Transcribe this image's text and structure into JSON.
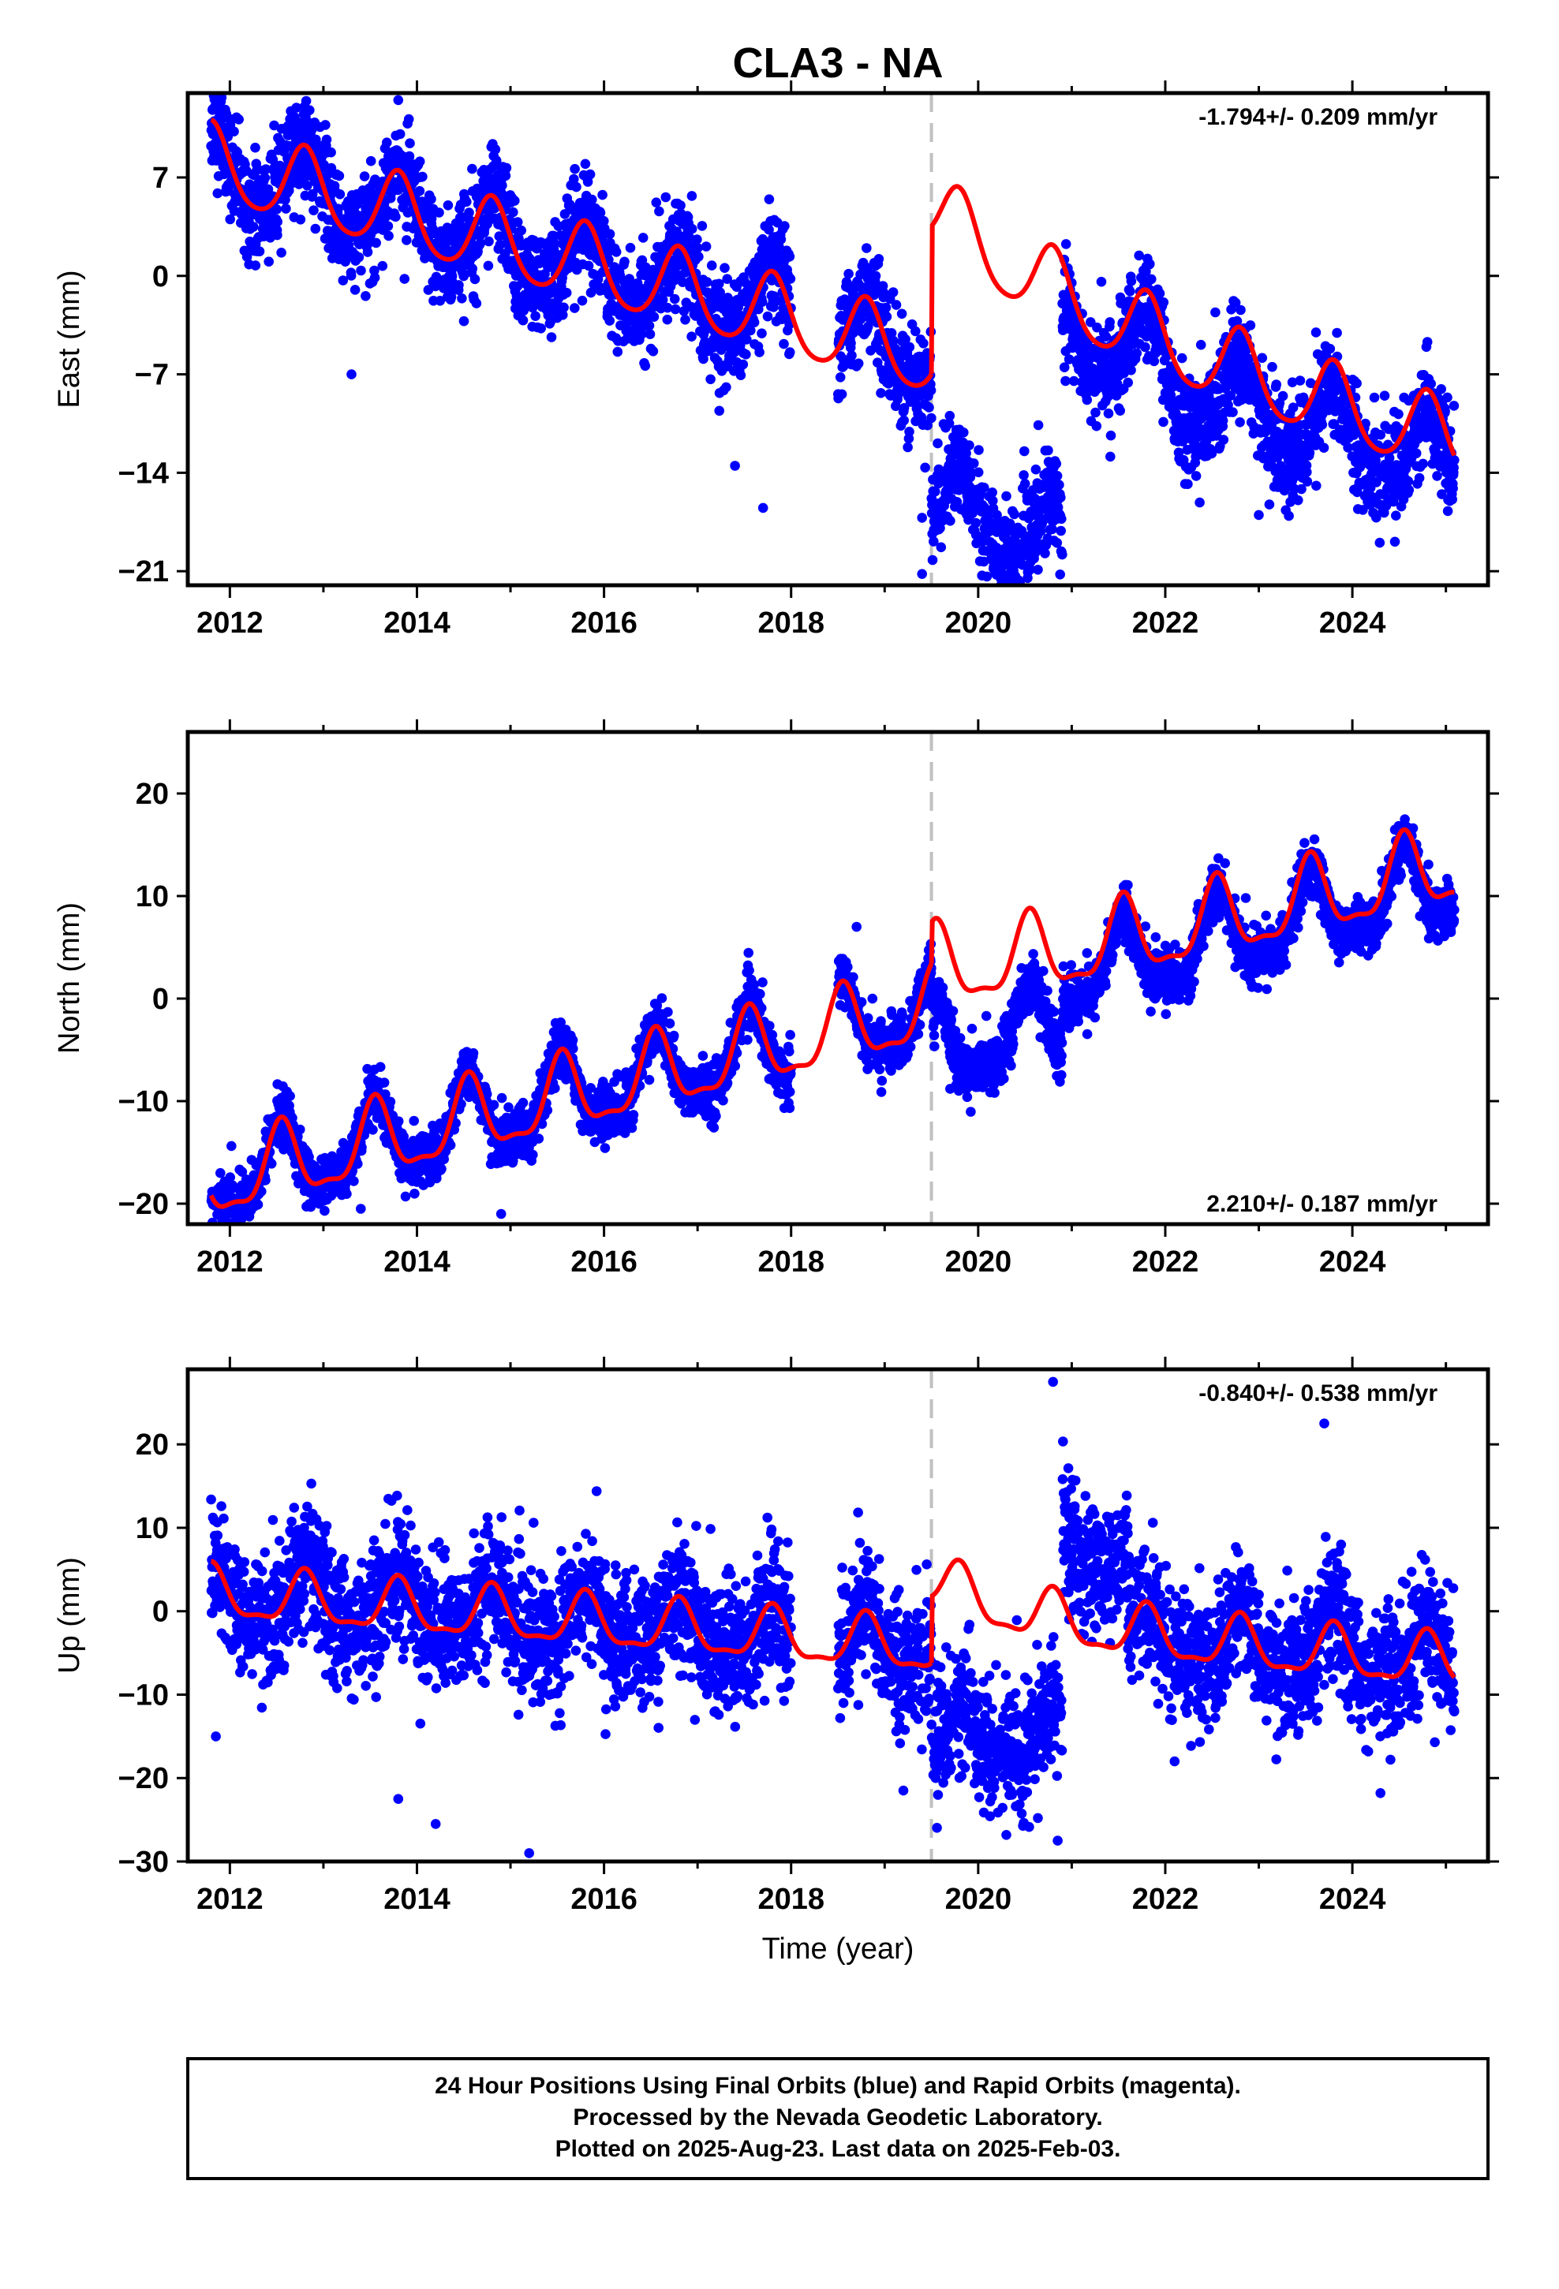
{
  "title": "CLA3 - NA",
  "xlabel": "Time (year)",
  "footer": {
    "line1": "24 Hour Positions Using Final Orbits (blue) and Rapid Orbits (magenta).",
    "line2": "Processed by the Nevada Geodetic Laboratory.",
    "line3": "Plotted on 2025-Aug-23. Last data on 2025-Feb-03."
  },
  "colors": {
    "points": "#0000ff",
    "model": "#ff0000",
    "step_line": "#c0c0c0",
    "frame": "#000000"
  },
  "chart_data": [
    {
      "type": "scatter",
      "ylabel": "East (mm)",
      "rate_text": "-1.794+/- 0.209 mm/yr",
      "rate_position": "top-right",
      "xlim": [
        2011.55,
        2025.45
      ],
      "ylim": [
        -22,
        13
      ],
      "xticks": [
        2012,
        2014,
        2016,
        2018,
        2020,
        2022,
        2024
      ],
      "yticks": [
        7,
        0,
        -7,
        -14,
        -21
      ],
      "step_epoch": 2019.5,
      "data_start": 2011.8,
      "data_end": 2025.09,
      "gap": [
        2018.0,
        2018.5
      ],
      "model": {
        "rate": -1.794,
        "base_value": 8.0,
        "annual_amplitude": 2.7,
        "annual_peak": 0.8,
        "semiannual_amplitude": 0.4,
        "step_offset": 10.5,
        "step_decay_years": 2.0
      },
      "observation_offset": [
        {
          "from": 2019.5,
          "to": 2020.9,
          "offset": -10.5
        },
        {
          "from": 2020.9,
          "to": 2022.0,
          "offset": 4.5
        },
        {
          "from": 2022.0,
          "to": 2025.1,
          "offset": 2.5
        }
      ],
      "scatter_sigma": 1.8,
      "outliers": [
        {
          "x": 2013.3,
          "y": -7.0
        },
        {
          "x": 2017.4,
          "y": -13.5
        },
        {
          "x": 2017.7,
          "y": -16.5
        },
        {
          "x": 2019.4,
          "y": -17.2
        },
        {
          "x": 2019.4,
          "y": -21.2
        },
        {
          "x": 2020.2,
          "y": -17.0
        },
        {
          "x": 2023.0,
          "y": -17.0
        },
        {
          "x": 2024.2,
          "y": -16.0
        },
        {
          "x": 2013.8,
          "y": 12.5
        }
      ]
    },
    {
      "type": "scatter",
      "ylabel": "North (mm)",
      "rate_text": "2.210+/- 0.187 mm/yr",
      "rate_position": "bottom-right",
      "xlim": [
        2011.55,
        2025.45
      ],
      "ylim": [
        -22,
        26
      ],
      "xticks": [
        2012,
        2014,
        2016,
        2018,
        2020,
        2022,
        2024
      ],
      "yticks": [
        20,
        10,
        0,
        -10,
        -20
      ],
      "step_epoch": 2019.5,
      "data_start": 2011.8,
      "data_end": 2025.09,
      "gap": [
        2018.0,
        2018.5
      ],
      "model": {
        "rate": 2.21,
        "base_value": -18.0,
        "annual_amplitude": 3.6,
        "annual_peak": 0.55,
        "semiannual_amplitude": 1.2,
        "step_offset": 4.0,
        "step_decay_years": 1.5
      },
      "observation_offset": [
        {
          "from": 2019.5,
          "to": 2020.9,
          "offset": -4.5
        }
      ],
      "scatter_sigma": 1.3,
      "outliers": [
        {
          "x": 2014.9,
          "y": -21.0
        },
        {
          "x": 2013.4,
          "y": -20.5
        },
        {
          "x": 2019.7,
          "y": -8.8
        },
        {
          "x": 2018.7,
          "y": 7.0
        }
      ]
    },
    {
      "type": "scatter",
      "ylabel": "Up (mm)",
      "rate_text": "-0.840+/- 0.538 mm/yr",
      "rate_position": "top-right",
      "xlim": [
        2011.55,
        2025.45
      ],
      "ylim": [
        -30,
        29
      ],
      "xticks": [
        2012,
        2014,
        2016,
        2018,
        2020,
        2022,
        2024
      ],
      "yticks": [
        20,
        10,
        0,
        -10,
        -20,
        -30
      ],
      "step_epoch": 2019.5,
      "data_start": 2011.8,
      "data_end": 2025.09,
      "gap": [
        2018.0,
        2018.5
      ],
      "model": {
        "rate": -0.84,
        "base_value": 2.0,
        "annual_amplitude": 3.0,
        "annual_peak": 0.8,
        "semiannual_amplitude": 1.0,
        "step_offset": 8.0,
        "step_decay_years": 1.2
      },
      "observation_offset": [
        {
          "from": 2019.5,
          "to": 2020.9,
          "offset": -10.0
        },
        {
          "from": 2020.9,
          "to": 2021.6,
          "offset": 13.0
        },
        {
          "from": 2021.6,
          "to": 2025.1,
          "offset": 3.0
        }
      ],
      "scatter_sigma": 3.8,
      "outliers": [
        {
          "x": 2015.2,
          "y": -29.0
        },
        {
          "x": 2013.8,
          "y": -22.5
        },
        {
          "x": 2014.2,
          "y": -25.5
        },
        {
          "x": 2020.8,
          "y": 27.5
        },
        {
          "x": 2020.85,
          "y": -27.5
        },
        {
          "x": 2023.7,
          "y": 22.5
        },
        {
          "x": 2024.3,
          "y": -21.8
        },
        {
          "x": 2011.85,
          "y": -15.0
        },
        {
          "x": 2019.2,
          "y": -21.5
        },
        {
          "x": 2022.1,
          "y": -18.0
        }
      ]
    }
  ]
}
